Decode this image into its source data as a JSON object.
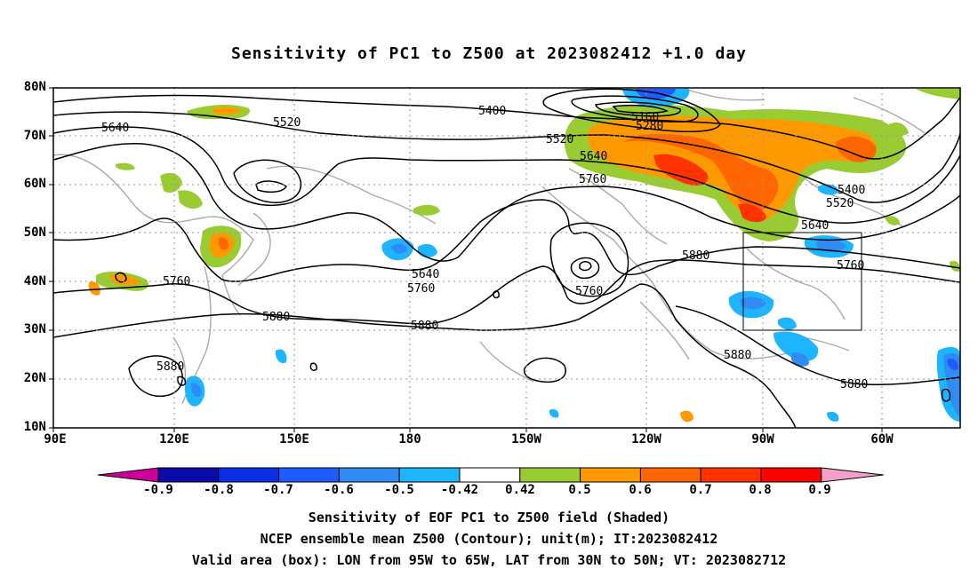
{
  "title": "Sensitivity of PC1 to Z500 at 2023082412 +1.0 day",
  "lat_labels": [
    "80N",
    "70N",
    "60N",
    "50N",
    "40N",
    "30N",
    "20N",
    "10N"
  ],
  "lon_labels": [
    "90E",
    "120E",
    "150E",
    "180",
    "150W",
    "120W",
    "90W",
    "60W"
  ],
  "contour_labels": [
    "5640",
    "5520",
    "5400",
    "5160",
    "5280",
    "5520",
    "5640",
    "5760",
    "5400",
    "5520",
    "5640",
    "5760",
    "5880",
    "5640",
    "5760",
    "5760",
    "5760",
    "5880",
    "5880",
    "5880",
    "5880",
    "5880"
  ],
  "colorbar": {
    "labels": [
      "-0.9",
      "-0.8",
      "-0.7",
      "-0.6",
      "-0.5",
      "-0.42",
      "0.42",
      "0.5",
      "0.6",
      "0.7",
      "0.8",
      "0.9"
    ],
    "colors": [
      "#cc0099",
      "#0a0aa8",
      "#0a2ee6",
      "#1f5cff",
      "#2f8cf5",
      "#1fb4ff",
      "#ffffff",
      "#99cc33",
      "#ff9900",
      "#ff6600",
      "#ff3300",
      "#ff0000",
      "#f4a0c8"
    ]
  },
  "shading_colors": {
    "green": "#99cc33",
    "orange": "#ff9900",
    "dark_orange": "#ff6600",
    "red": "#ff3300",
    "light_blue": "#1fb4ff",
    "blue": "#2f8cf5",
    "dark_blue": "#0a2ee6"
  },
  "captions": [
    "Sensitivity of EOF PC1 to Z500 field (Shaded)",
    "NCEP ensemble mean Z500 (Contour); unit(m); IT:2023082412",
    "Valid area (box): LON from 95W to 65W, LAT from 30N to 50N; VT: 2023082712"
  ],
  "valid_box": {
    "lon_min": "95W",
    "lon_max": "65W",
    "lat_min": "30N",
    "lat_max": "50N"
  }
}
